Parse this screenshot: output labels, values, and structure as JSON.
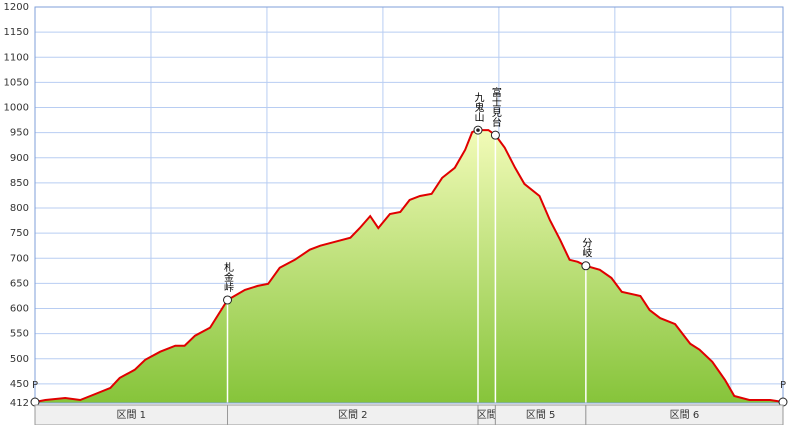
{
  "chart_data": {
    "type": "area",
    "x": [
      0,
      0.09,
      0.26,
      0.39,
      0.52,
      0.65,
      0.73,
      0.86,
      0.95,
      1.08,
      1.21,
      1.29,
      1.38,
      1.51,
      1.66,
      1.81,
      1.92,
      2.01,
      2.11,
      2.24,
      2.37,
      2.46,
      2.59,
      2.72,
      2.8,
      2.89,
      2.96,
      3.06,
      3.15,
      3.23,
      3.32,
      3.42,
      3.51,
      3.62,
      3.71,
      3.77,
      3.82,
      3.91,
      3.97,
      4.05,
      4.14,
      4.22,
      4.35,
      4.44,
      4.53,
      4.61,
      4.68,
      4.75,
      4.87,
      4.97,
      5.06,
      5.22,
      5.3,
      5.39,
      5.52,
      5.65,
      5.73,
      5.84,
      5.95,
      6.03,
      6.16,
      6.34,
      6.45
    ],
    "values": [
      414,
      418,
      422,
      418,
      430,
      442,
      462,
      478,
      498,
      514,
      526,
      526,
      546,
      562,
      617,
      637,
      645,
      649,
      681,
      697,
      717,
      725,
      733,
      741,
      760,
      784,
      760,
      788,
      792,
      816,
      824,
      828,
      860,
      880,
      916,
      951,
      955,
      955,
      945,
      920,
      880,
      848,
      824,
      776,
      736,
      697,
      693,
      685,
      677,
      661,
      633,
      625,
      597,
      581,
      569,
      530,
      518,
      494,
      458,
      426,
      418,
      418,
      414
    ],
    "color": "#e00000",
    "xlim": [
      0,
      6.45
    ],
    "xticks": [
      1,
      2,
      3,
      4,
      5,
      6
    ],
    "ylim": [
      412,
      1200
    ],
    "yticks": [
      412,
      450,
      500,
      550,
      600,
      650,
      700,
      750,
      800,
      850,
      900,
      950,
      1000,
      1050,
      1100,
      1150,
      1200
    ],
    "grid": true,
    "waypoints": [
      {
        "label": "P",
        "x": 0,
        "value": 414
      },
      {
        "label": "札金峠",
        "x": 1.66,
        "value": 617
      },
      {
        "label": "九鬼山",
        "x": 3.82,
        "value": 955
      },
      {
        "label": "富士見台",
        "x": 3.97,
        "value": 945
      },
      {
        "label": "分岐",
        "x": 4.75,
        "value": 685
      },
      {
        "label": "P",
        "x": 6.45,
        "value": 414
      }
    ],
    "sections": [
      {
        "label": "区間 1",
        "start": 0,
        "end": 1.66
      },
      {
        "label": "区間 2",
        "start": 1.66,
        "end": 3.82
      },
      {
        "label": "区間",
        "start": 3.82,
        "end": 3.97
      },
      {
        "label": "区間 5",
        "start": 3.97,
        "end": 4.75
      },
      {
        "label": "区間 6",
        "start": 4.75,
        "end": 6.45
      }
    ]
  }
}
